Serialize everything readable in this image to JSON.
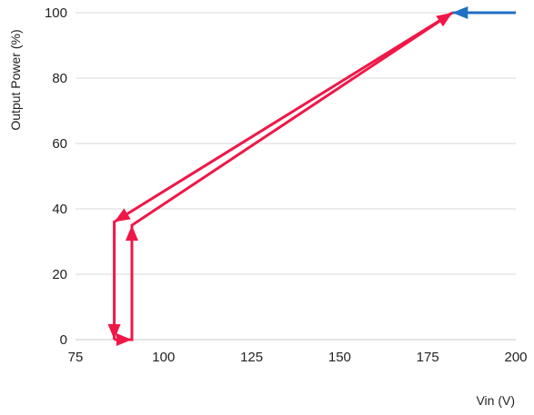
{
  "chart_data": {
    "type": "line",
    "title": "",
    "xlabel": "Vin (V)",
    "ylabel": "Output Power (%)",
    "xlim": [
      75,
      200
    ],
    "ylim": [
      0,
      100
    ],
    "x_ticks": [
      "75",
      "100",
      "125",
      "150",
      "175",
      "200"
    ],
    "y_ticks": [
      "0",
      "20",
      "40",
      "60",
      "80",
      "100"
    ],
    "grid": "horizontal",
    "legend": "none",
    "series": [
      {
        "color": "#1f6fc5",
        "direction": "decreasing Vin",
        "x": [
          200,
          182
        ],
        "y": [
          100,
          100
        ]
      },
      {
        "color": "#ef1747",
        "direction": "decreasing Vin",
        "x": [
          182,
          86,
          86
        ],
        "y": [
          100,
          36,
          0
        ]
      },
      {
        "color": "#ef1747",
        "direction": "increasing Vin",
        "x": [
          86,
          91,
          91,
          182
        ],
        "y": [
          0,
          0,
          35,
          100
        ]
      }
    ]
  }
}
